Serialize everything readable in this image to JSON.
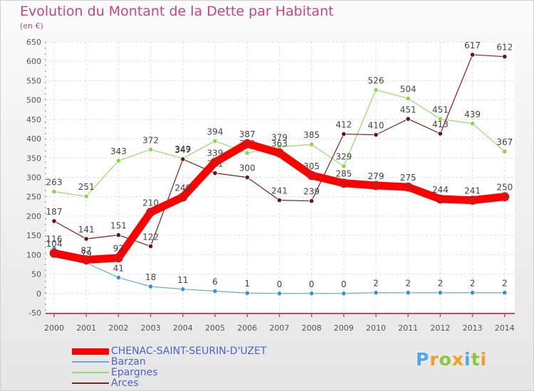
{
  "title": "Evolution du Montant de la Dette par Habitant",
  "subtitle": "(en €)",
  "logo": {
    "letters": [
      "P",
      "r",
      "o",
      "x",
      "i",
      "t",
      "i"
    ],
    "colors": [
      "#4da7e8",
      "#f39c2a",
      "#8cc63f",
      "#f39c2a",
      "#4da7e8",
      "#8cc63f",
      "#f39c2a"
    ]
  },
  "chart_data": {
    "type": "line",
    "title": "Evolution du Montant de la Dette par Habitant",
    "ylabel": "(en €)",
    "xlabel": "",
    "x": [
      "2000",
      "2001",
      "2002",
      "2003",
      "2004",
      "2005",
      "2006",
      "2007",
      "2008",
      "2009",
      "2010",
      "2011",
      "2012",
      "2013",
      "2014"
    ],
    "ylim": [
      -50,
      650
    ],
    "yticks": [
      "-50",
      "0",
      "50",
      "100",
      "150",
      "200",
      "250",
      "300",
      "350",
      "400",
      "450",
      "500",
      "550",
      "600",
      "650"
    ],
    "grid": true,
    "legend_position": "bottom-left",
    "series": [
      {
        "name": "CHENAC-SAINT-SEURIN-D'UZET",
        "color": "#ff0000",
        "dot": "#e01010",
        "width": 11,
        "values": [
          104,
          87,
          92,
          210,
          249,
          339,
          387,
          363,
          305,
          285,
          279,
          275,
          244,
          241,
          250
        ]
      },
      {
        "name": "Barzan",
        "color": "#6da7d6",
        "dot": "#3b8fd3",
        "width": 1.2,
        "values": [
          116,
          79,
          41,
          18,
          11,
          6,
          1,
          0,
          0,
          0,
          2,
          2,
          2,
          2,
          2
        ]
      },
      {
        "name": "Epargnes",
        "color": "#9ad86a",
        "dot": "#8ed451",
        "width": 1.2,
        "values": [
          263,
          251,
          343,
          372,
          349,
          394,
          363,
          379,
          385,
          329,
          526,
          504,
          451,
          439,
          367
        ]
      },
      {
        "name": "Arces",
        "color": "#7a2020",
        "dot": "#6a1414",
        "width": 1.2,
        "values": [
          187,
          141,
          151,
          122,
          347,
          311,
          300,
          241,
          239,
          412,
          410,
          451,
          413,
          617,
          612
        ]
      }
    ]
  }
}
